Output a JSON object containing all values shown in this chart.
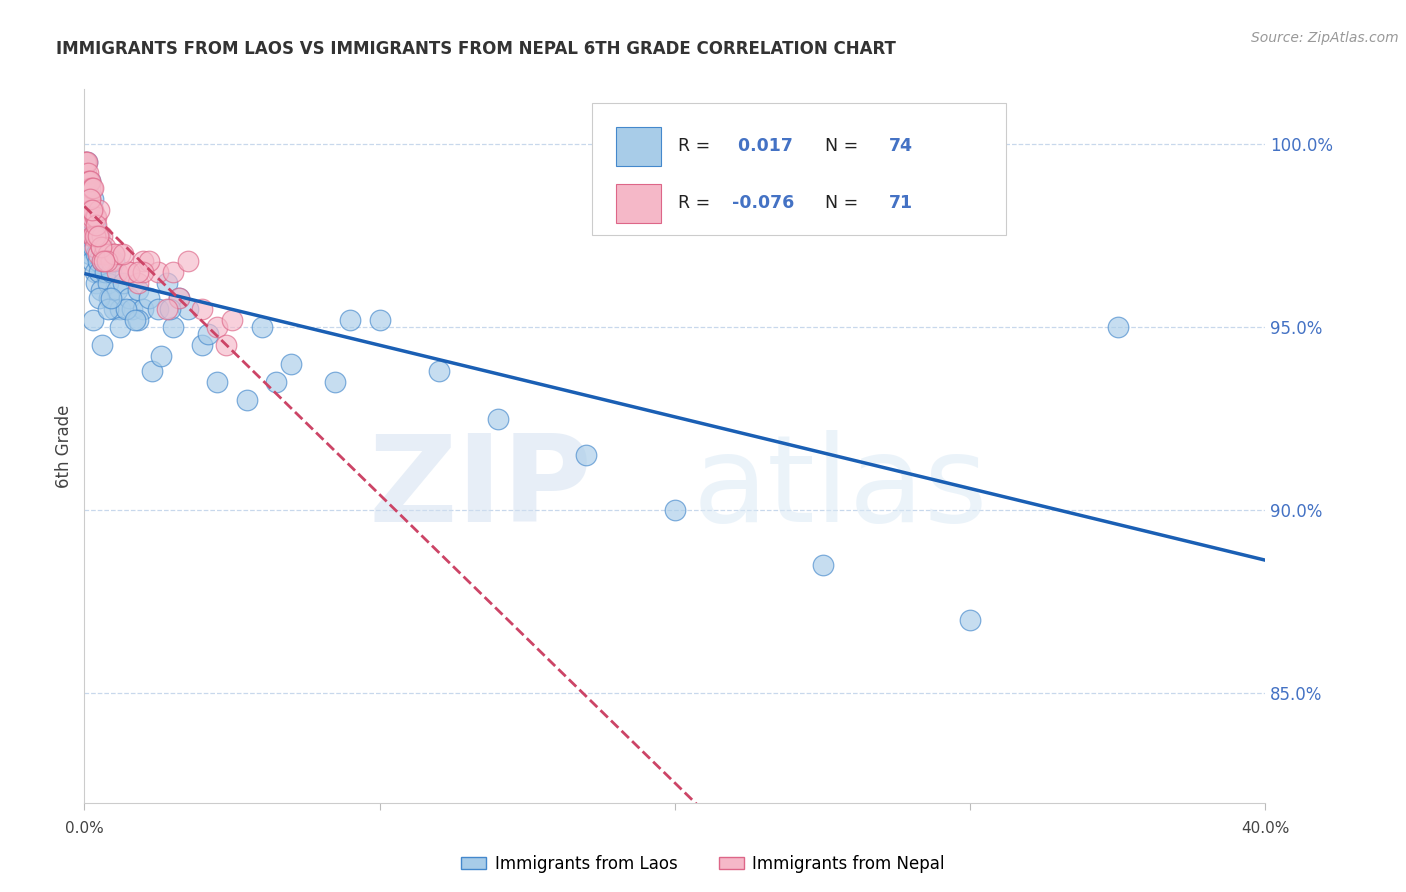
{
  "title": "IMMIGRANTS FROM LAOS VS IMMIGRANTS FROM NEPAL 6TH GRADE CORRELATION CHART",
  "source": "Source: ZipAtlas.com",
  "ylabel": "6th Grade",
  "yticks": [
    85.0,
    90.0,
    95.0,
    100.0
  ],
  "xlim": [
    0.0,
    40.0
  ],
  "ylim": [
    82.0,
    101.5
  ],
  "legend_blue_r": "0.017",
  "legend_blue_n": "74",
  "legend_pink_r": "-0.076",
  "legend_pink_n": "71",
  "blue_color": "#a8cce8",
  "pink_color": "#f5b8c8",
  "blue_edge_color": "#4488cc",
  "pink_edge_color": "#dd6688",
  "blue_line_color": "#1a5fb4",
  "pink_line_color": "#cc4466",
  "blue_scatter_x": [
    0.05,
    0.05,
    0.1,
    0.1,
    0.1,
    0.15,
    0.15,
    0.2,
    0.2,
    0.2,
    0.25,
    0.25,
    0.3,
    0.3,
    0.35,
    0.35,
    0.4,
    0.4,
    0.45,
    0.5,
    0.5,
    0.55,
    0.6,
    0.6,
    0.7,
    0.7,
    0.8,
    0.85,
    0.9,
    1.0,
    1.0,
    1.1,
    1.2,
    1.3,
    1.5,
    1.6,
    1.8,
    2.0,
    2.2,
    2.5,
    2.8,
    3.2,
    3.5,
    4.0,
    4.5,
    5.5,
    6.5,
    7.0,
    8.5,
    10.0,
    12.0,
    14.0,
    17.0,
    20.0,
    25.0,
    30.0,
    0.3,
    0.5,
    0.8,
    1.2,
    1.8,
    2.3,
    3.0,
    4.2,
    6.0,
    9.0,
    0.6,
    1.4,
    2.6,
    22.0,
    0.9,
    1.7,
    2.9,
    35.0
  ],
  "blue_scatter_y": [
    97.2,
    98.5,
    97.8,
    98.8,
    99.5,
    97.5,
    98.2,
    97.0,
    98.0,
    99.0,
    96.8,
    97.5,
    97.2,
    98.5,
    96.5,
    97.8,
    96.2,
    97.0,
    96.8,
    96.5,
    97.5,
    96.0,
    97.2,
    96.8,
    96.5,
    97.0,
    96.2,
    95.8,
    96.5,
    95.5,
    96.8,
    96.0,
    95.5,
    96.2,
    95.8,
    95.5,
    96.0,
    95.5,
    95.8,
    95.5,
    96.2,
    95.8,
    95.5,
    94.5,
    93.5,
    93.0,
    93.5,
    94.0,
    93.5,
    95.2,
    93.8,
    92.5,
    91.5,
    90.0,
    88.5,
    87.0,
    95.2,
    95.8,
    95.5,
    95.0,
    95.2,
    93.8,
    95.0,
    94.8,
    95.0,
    95.2,
    94.5,
    95.5,
    94.2,
    99.8,
    95.8,
    95.2,
    95.5,
    95.0
  ],
  "pink_scatter_x": [
    0.02,
    0.03,
    0.05,
    0.05,
    0.05,
    0.08,
    0.08,
    0.1,
    0.1,
    0.1,
    0.1,
    0.12,
    0.12,
    0.15,
    0.15,
    0.15,
    0.18,
    0.18,
    0.2,
    0.2,
    0.2,
    0.22,
    0.25,
    0.25,
    0.25,
    0.3,
    0.3,
    0.3,
    0.35,
    0.35,
    0.4,
    0.4,
    0.45,
    0.5,
    0.5,
    0.55,
    0.6,
    0.65,
    0.7,
    0.8,
    0.9,
    1.0,
    1.1,
    1.2,
    1.5,
    1.8,
    2.0,
    2.5,
    3.0,
    3.5,
    4.0,
    4.5,
    5.0,
    0.35,
    0.6,
    1.0,
    1.5,
    2.2,
    0.2,
    0.4,
    0.55,
    0.75,
    1.3,
    2.0,
    3.2,
    4.8,
    1.8,
    2.8,
    0.25,
    0.45,
    0.65
  ],
  "pink_scatter_y": [
    99.0,
    99.5,
    98.8,
    99.2,
    99.5,
    98.5,
    99.0,
    98.2,
    98.8,
    99.0,
    99.5,
    98.5,
    99.2,
    98.0,
    98.5,
    99.0,
    98.2,
    98.8,
    97.8,
    98.5,
    99.0,
    98.2,
    97.5,
    98.0,
    98.8,
    97.5,
    98.2,
    98.8,
    97.2,
    98.0,
    97.5,
    98.0,
    97.0,
    97.5,
    98.2,
    97.2,
    97.5,
    97.0,
    97.2,
    97.0,
    96.8,
    97.0,
    96.5,
    97.0,
    96.5,
    96.2,
    96.8,
    96.5,
    96.5,
    96.8,
    95.5,
    95.0,
    95.2,
    97.5,
    96.8,
    97.0,
    96.5,
    96.8,
    98.5,
    97.8,
    97.2,
    96.8,
    97.0,
    96.5,
    95.8,
    94.5,
    96.5,
    95.5,
    98.2,
    97.5,
    96.8
  ]
}
